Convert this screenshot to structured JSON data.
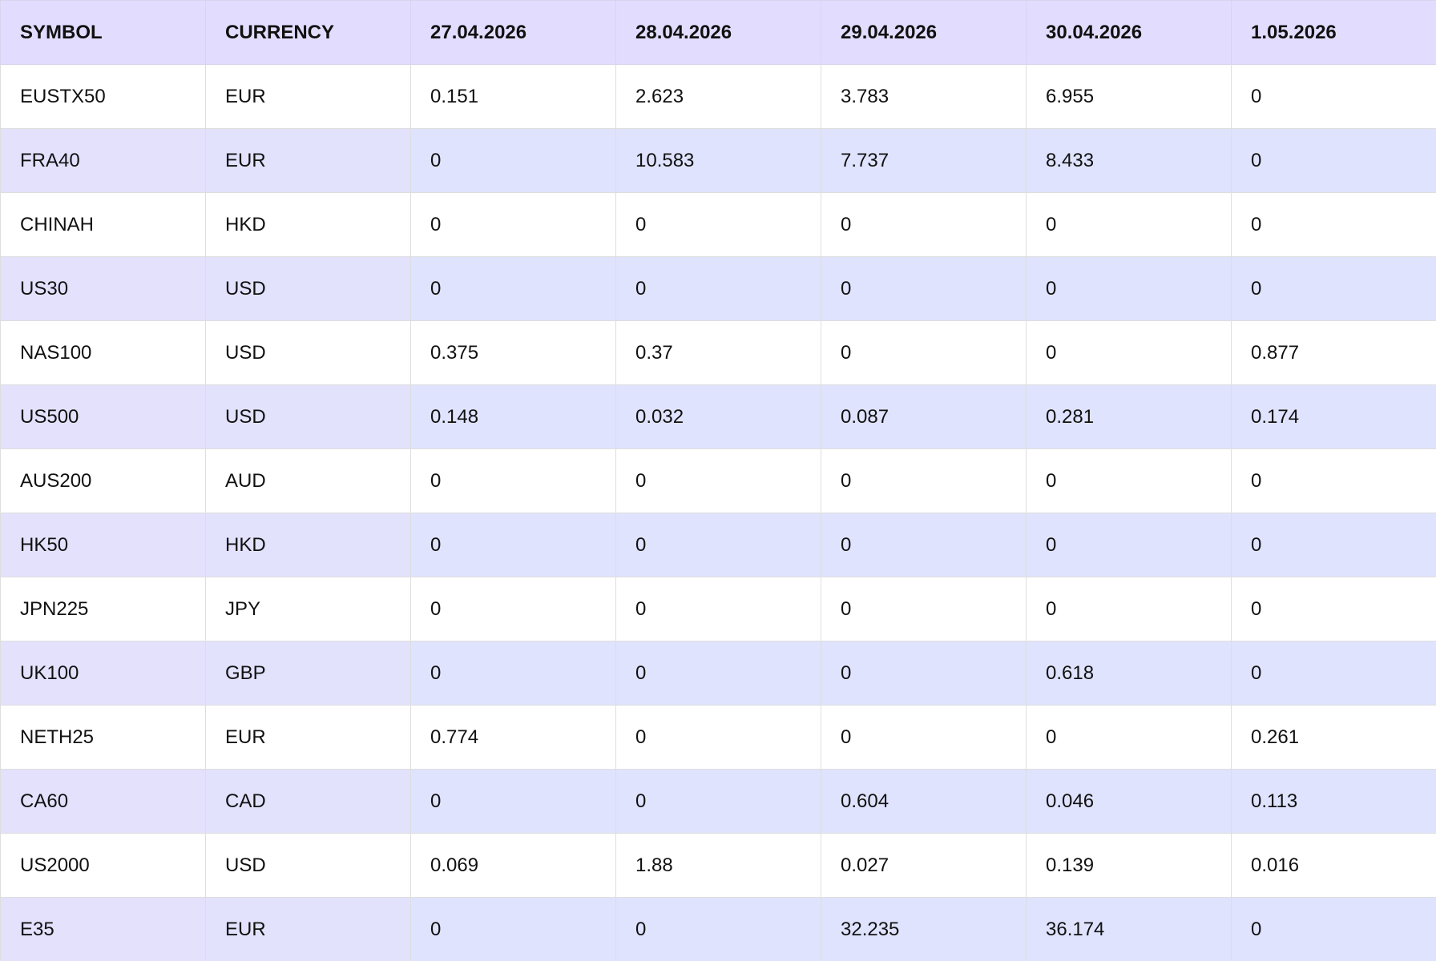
{
  "colors": {
    "header_bg": "#e2ddff",
    "row_alt_bg": "#dfe3fd",
    "row_bg": "#ffffff",
    "text": "#111111"
  },
  "table": {
    "headers": [
      "SYMBOL",
      "CURRENCY",
      "27.04.2026",
      "28.04.2026",
      "29.04.2026",
      "30.04.2026",
      "1.05.2026"
    ],
    "rows": [
      [
        "EUSTX50",
        "EUR",
        "0.151",
        "2.623",
        "3.783",
        "6.955",
        "0"
      ],
      [
        "FRA40",
        "EUR",
        "0",
        "10.583",
        "7.737",
        "8.433",
        "0"
      ],
      [
        "CHINAH",
        "HKD",
        "0",
        "0",
        "0",
        "0",
        "0"
      ],
      [
        "US30",
        "USD",
        "0",
        "0",
        "0",
        "0",
        "0"
      ],
      [
        "NAS100",
        "USD",
        "0.375",
        "0.37",
        "0",
        "0",
        "0.877"
      ],
      [
        "US500",
        "USD",
        "0.148",
        "0.032",
        "0.087",
        "0.281",
        "0.174"
      ],
      [
        "AUS200",
        "AUD",
        "0",
        "0",
        "0",
        "0",
        "0"
      ],
      [
        "HK50",
        "HKD",
        "0",
        "0",
        "0",
        "0",
        "0"
      ],
      [
        "JPN225",
        "JPY",
        "0",
        "0",
        "0",
        "0",
        "0"
      ],
      [
        "UK100",
        "GBP",
        "0",
        "0",
        "0",
        "0.618",
        "0"
      ],
      [
        "NETH25",
        "EUR",
        "0.774",
        "0",
        "0",
        "0",
        "0.261"
      ],
      [
        "CA60",
        "CAD",
        "0",
        "0",
        "0.604",
        "0.046",
        "0.113"
      ],
      [
        "US2000",
        "USD",
        "0.069",
        "1.88",
        "0.027",
        "0.139",
        "0.016"
      ],
      [
        "E35",
        "EUR",
        "0",
        "0",
        "32.235",
        "36.174",
        "0"
      ]
    ]
  }
}
